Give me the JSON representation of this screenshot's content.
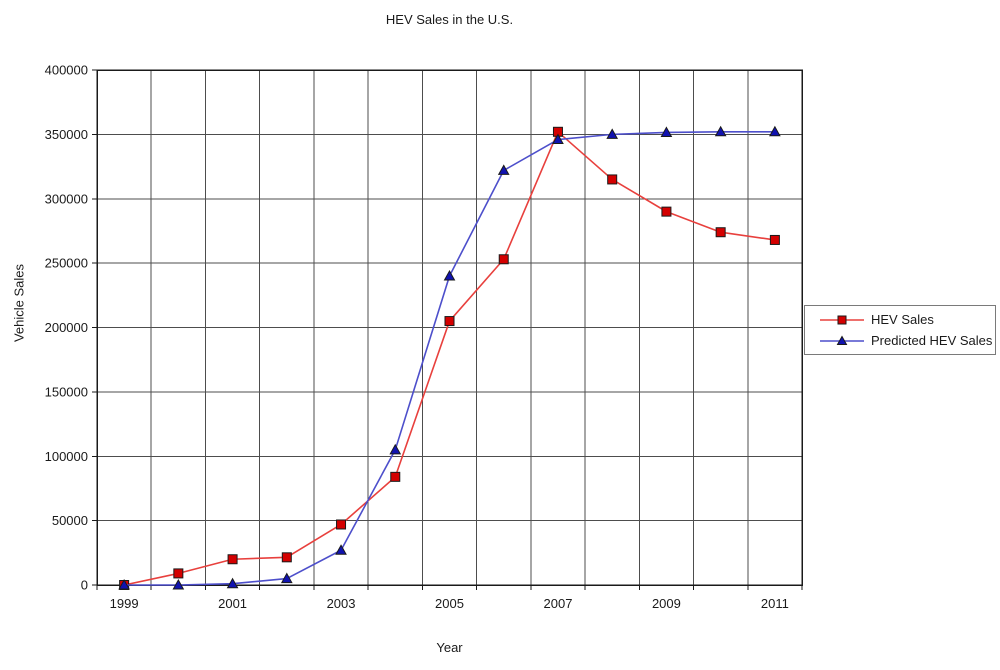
{
  "title": "HEV  Sales in the U.S.",
  "axes": {
    "x_label": "Year",
    "y_label": "Vehicle Sales"
  },
  "legend": {
    "items": [
      {
        "label": "HEV Sales"
      },
      {
        "label": "Predicted HEV Sales"
      }
    ]
  },
  "chart_data": {
    "type": "line",
    "title": "HEV  Sales in the U.S.",
    "xlabel": "Year",
    "ylabel": "Vehicle Sales",
    "x": [
      1999,
      2000,
      2001,
      2002,
      2003,
      2004,
      2005,
      2006,
      2007,
      2008,
      2009,
      2010,
      2011
    ],
    "x_tick_labels": [
      "1999",
      "2001",
      "2003",
      "2005",
      "2007",
      "2009",
      "2011"
    ],
    "ylim": [
      0,
      400000
    ],
    "y_tick_step": 50000,
    "y_tick_labels": [
      "0",
      "50000",
      "100000",
      "150000",
      "200000",
      "250000",
      "300000",
      "350000",
      "400000"
    ],
    "grid": true,
    "legend_position": "right-middle",
    "series": [
      {
        "name": "HEV Sales",
        "marker": "square",
        "line_color": "#e8403d",
        "marker_color": "#d40000",
        "values": [
          0,
          9000,
          20000,
          21500,
          47000,
          84000,
          205000,
          253000,
          352000,
          315000,
          290000,
          274000,
          268000
        ]
      },
      {
        "name": "Predicted HEV Sales",
        "marker": "triangle",
        "line_color": "#4d4fcb",
        "marker_color": "#1012b0",
        "values": [
          0,
          0,
          1000,
          5000,
          27000,
          105000,
          240000,
          322000,
          346000,
          350000,
          351500,
          352000,
          352000
        ]
      }
    ]
  }
}
